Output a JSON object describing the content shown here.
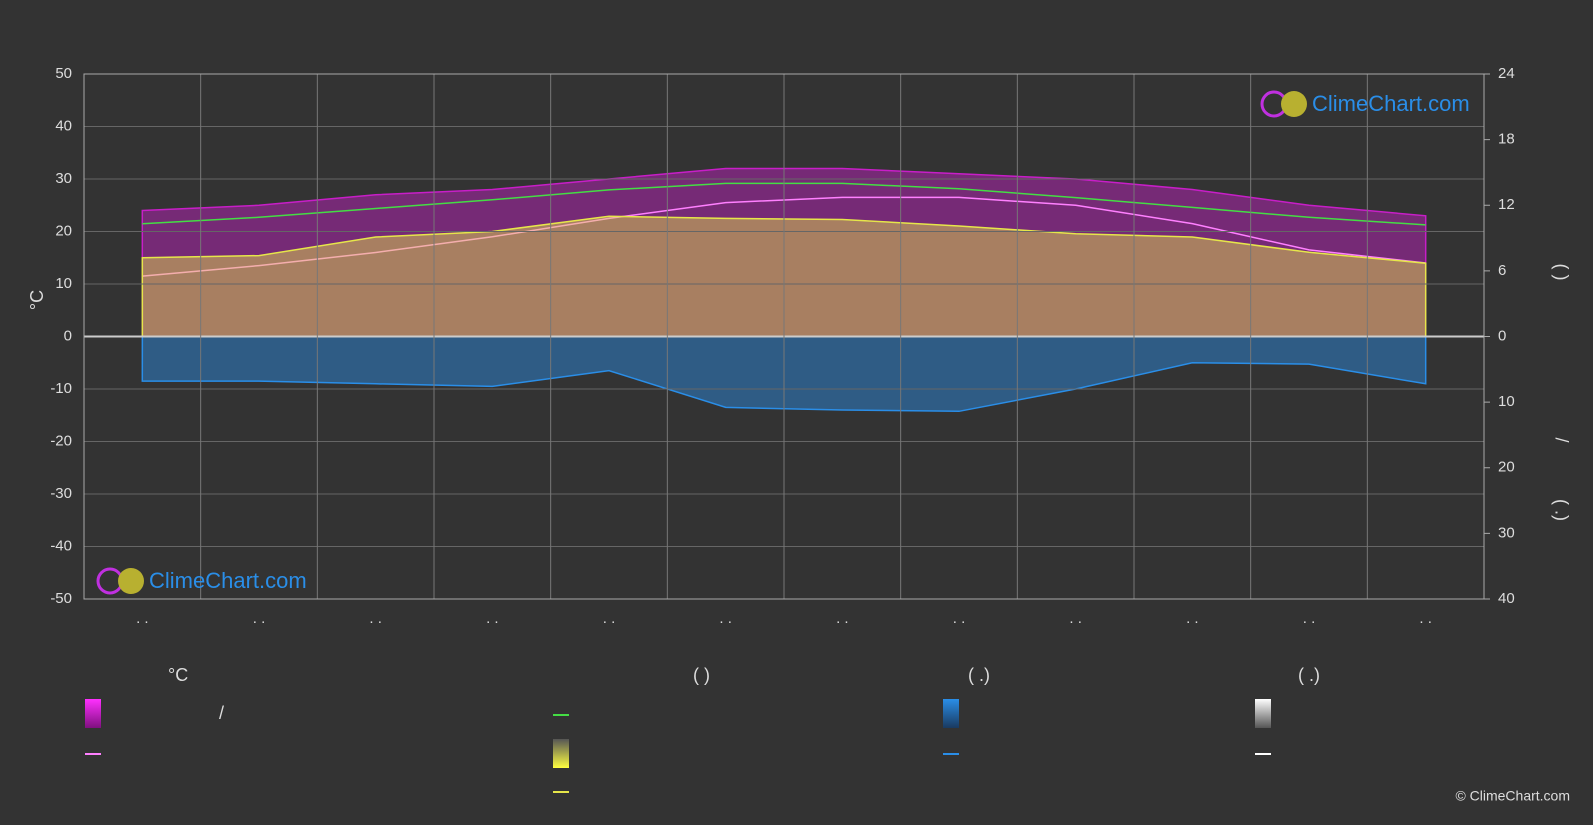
{
  "chart_data": {
    "type": "climate",
    "y_label": "°C",
    "y2_label": "(    )",
    "y3_label": "(  .)",
    "y3_separator": "/",
    "categories": [
      ". .",
      ". .",
      ". .",
      ". .",
      ". .",
      ". .",
      ". .",
      ". .",
      ". .",
      ". .",
      ". .",
      ". ."
    ],
    "ylim": [
      -50,
      50
    ],
    "yticks": [
      -50,
      -40,
      -30,
      -20,
      -10,
      0,
      10,
      20,
      30,
      40,
      50
    ],
    "y2lim": [
      0,
      24
    ],
    "y2ticks": [
      0,
      6,
      12,
      18,
      24
    ],
    "y3lim": [
      0,
      40
    ],
    "y3ticks": [
      10,
      20,
      30,
      40
    ],
    "grid": true,
    "series": [
      {
        "color": "#c81ec8",
        "style": "area",
        "values": [
          24,
          25,
          27,
          28,
          30,
          32,
          32,
          31,
          30,
          28,
          25,
          23
        ]
      },
      {
        "color": "#ff80ff",
        "style": "line",
        "values": [
          11.5,
          13.5,
          16,
          19,
          22.5,
          25.5,
          26.5,
          26.5,
          25,
          21.5,
          16.5,
          14
        ]
      },
      {
        "color": "#44dd44",
        "style": "line",
        "axis": "y2",
        "values": [
          10.3,
          10.9,
          11.7,
          12.5,
          13.4,
          14.0,
          14.0,
          13.5,
          12.7,
          11.8,
          10.9,
          10.2
        ]
      },
      {
        "color": "#e6e64a",
        "style": "area",
        "axis": "y2",
        "values": [
          7.2,
          7.4,
          9.1,
          9.6,
          11.0,
          10.8,
          10.7,
          10.1,
          9.4,
          9.1,
          7.7,
          6.7
        ]
      },
      {
        "color": "#2a8ee8",
        "style": "area",
        "axis": "y3",
        "values": [
          6.8,
          6.8,
          7.2,
          7.6,
          5.2,
          10.8,
          11.2,
          11.4,
          8.0,
          4.0,
          4.2,
          7.2
        ]
      }
    ]
  },
  "legend": {
    "headers": [
      "°C",
      "(          )",
      "(    .)",
      "(    .)"
    ],
    "separator": "/"
  },
  "watermark": "ClimeChart.com",
  "copyright": "© ClimeChart.com"
}
